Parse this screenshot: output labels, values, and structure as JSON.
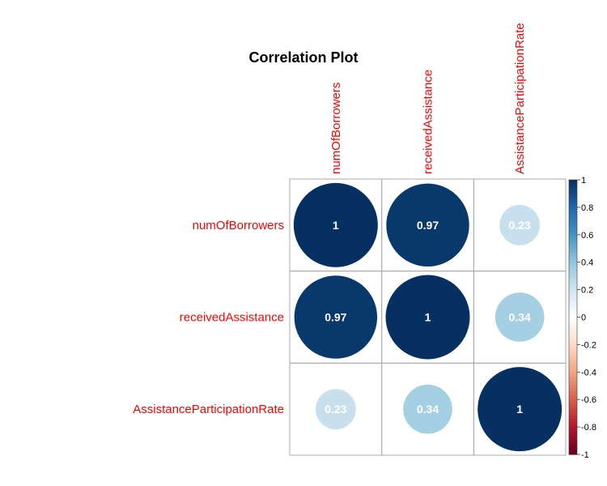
{
  "chart_data": {
    "type": "heatmap",
    "title": "Correlation Plot",
    "variables": [
      "numOfBorrowers",
      "receivedAssistance",
      "AssistanceParticipationRate"
    ],
    "matrix": [
      [
        1,
        0.97,
        0.23
      ],
      [
        0.97,
        1,
        0.34
      ],
      [
        0.23,
        0.34,
        1
      ]
    ],
    "value_labels": [
      [
        "1",
        "0.97",
        "0.23"
      ],
      [
        "0.97",
        "1",
        "0.34"
      ],
      [
        "0.23",
        "0.34",
        "1"
      ]
    ],
    "colorbar": {
      "range": [
        -1,
        1
      ],
      "ticks": [
        1,
        0.8,
        0.6,
        0.4,
        0.2,
        0,
        -0.2,
        -0.4,
        -0.6,
        -0.8,
        -1
      ],
      "tick_labels": [
        "1",
        "0.8",
        "0.6",
        "0.4",
        "0.2",
        "0",
        "-0.2",
        "-0.4",
        "-0.6",
        "-0.8",
        "-1"
      ]
    },
    "marker": "circle",
    "label_color": "#ff0000",
    "grid_color": "#aaaaaa"
  }
}
